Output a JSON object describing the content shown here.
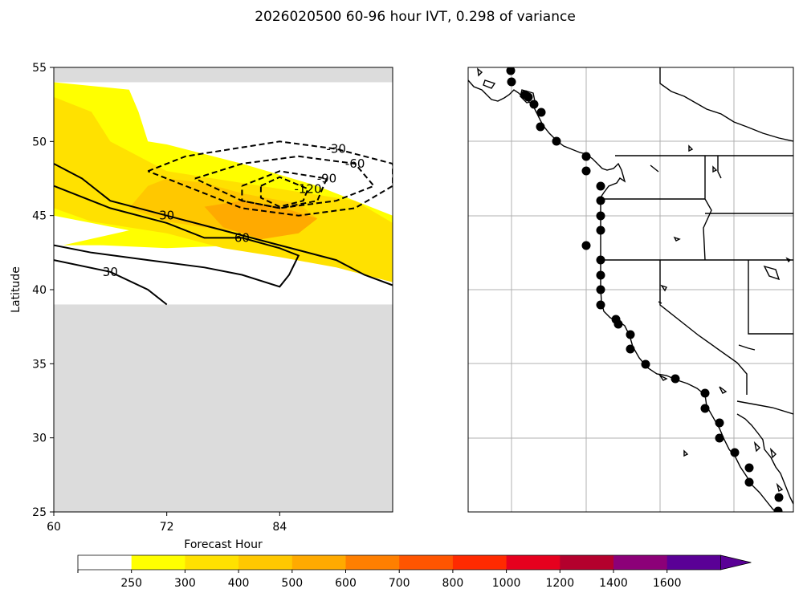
{
  "figure": {
    "title": "2026020500 60-96 hour IVT, 0.298 of variance"
  },
  "chart_data": [
    {
      "type": "contourf",
      "panel": "hovmoller",
      "xlabel": "Forecast Hour",
      "ylabel": "Latitude",
      "xlim": [
        60,
        96
      ],
      "ylim": [
        25,
        55
      ],
      "x_ticks": [
        60,
        72,
        84
      ],
      "y_ticks": [
        25,
        30,
        35,
        40,
        45,
        50,
        55
      ],
      "masked_lat_ranges": [
        [
          25,
          39
        ],
        [
          54,
          55
        ]
      ],
      "filled_levels": [
        {
          "range": [
            250,
            300
          ],
          "color": "#ffff00",
          "outline": [
            [
              60,
              54
            ],
            [
              68,
              53.5
            ],
            [
              69,
              52
            ],
            [
              70,
              50
            ],
            [
              72,
              49.8
            ],
            [
              80,
              48.5
            ],
            [
              88,
              47
            ],
            [
              96,
              45
            ],
            [
              96,
              41
            ],
            [
              88,
              42.5
            ],
            [
              80,
              43
            ],
            [
              72,
              42.8
            ],
            [
              65,
              43
            ],
            [
              61,
              43
            ],
            [
              68,
              44
            ],
            [
              60,
              45
            ]
          ]
        },
        {
          "range": [
            300,
            400
          ],
          "color": "#ffe100",
          "outline": [
            [
              60,
              53
            ],
            [
              64,
              52
            ],
            [
              66,
              50
            ],
            [
              72,
              48
            ],
            [
              80,
              47.2
            ],
            [
              92,
              46
            ],
            [
              96,
              44.5
            ],
            [
              96,
              40.5
            ],
            [
              90,
              41.5
            ],
            [
              84,
              42.2
            ],
            [
              78,
              42.8
            ],
            [
              72,
              43.8
            ],
            [
              64,
              44.6
            ],
            [
              60,
              45.5
            ]
          ]
        },
        {
          "range": [
            400,
            500
          ],
          "color": "#ffc800",
          "outline": [
            [
              72,
              47.5
            ],
            [
              76,
              47.2
            ],
            [
              80,
              46.5
            ],
            [
              86,
              45.8
            ],
            [
              88,
              44.8
            ],
            [
              84,
              43.8
            ],
            [
              78,
              44
            ],
            [
              72,
              44.6
            ],
            [
              68,
              45.5
            ],
            [
              70,
              47
            ]
          ]
        },
        {
          "range": [
            500,
            600
          ],
          "color": "#ffaa00",
          "outline": [
            [
              76,
              45.6
            ],
            [
              80,
              46
            ],
            [
              84,
              45.6
            ],
            [
              88,
              44.8
            ],
            [
              86,
              43.8
            ],
            [
              82,
              43.4
            ],
            [
              78,
              44.2
            ]
          ]
        }
      ],
      "contour_lines": [
        {
          "value": -30,
          "label": "-30",
          "style": "dashed",
          "points": [
            [
              70,
              48
            ],
            [
              74,
              49
            ],
            [
              84,
              50
            ],
            [
              90,
              49.5
            ],
            [
              96,
              48.5
            ],
            [
              96,
              47
            ],
            [
              92,
              45.5
            ],
            [
              86,
              45
            ],
            [
              80,
              45.5
            ],
            [
              74,
              47
            ],
            [
              70,
              48
            ]
          ]
        },
        {
          "value": -60,
          "label": "-60",
          "style": "dashed",
          "points": [
            [
              75,
              47.5
            ],
            [
              80,
              48.5
            ],
            [
              86,
              49
            ],
            [
              92,
              48.5
            ],
            [
              94,
              47
            ],
            [
              90,
              46
            ],
            [
              84,
              45.5
            ],
            [
              80,
              46
            ],
            [
              75,
              47.5
            ]
          ]
        },
        {
          "value": -90,
          "label": "-90",
          "style": "dashed",
          "points": [
            [
              80,
              47
            ],
            [
              84,
              48
            ],
            [
              89,
              47.5
            ],
            [
              88,
              46
            ],
            [
              84,
              45.5
            ],
            [
              80,
              46
            ],
            [
              80,
              47
            ]
          ]
        },
        {
          "value": -120,
          "label": "-120",
          "style": "dashed",
          "points": [
            [
              82,
              47
            ],
            [
              84,
              47.6
            ],
            [
              87,
              46.8
            ],
            [
              86.5,
              46
            ],
            [
              84,
              45.6
            ],
            [
              82,
              46.2
            ],
            [
              82,
              47
            ]
          ]
        },
        {
          "value": 30,
          "label": "30",
          "style": "solid",
          "points": [
            [
              60,
              48.5
            ],
            [
              63,
              47.5
            ],
            [
              66,
              46
            ],
            [
              72,
              45
            ],
            [
              78,
              44
            ],
            [
              84,
              43
            ],
            [
              90,
              42
            ],
            [
              93,
              41
            ],
            [
              96,
              40.3
            ]
          ]
        },
        {
          "value": 60,
          "label": "60",
          "style": "solid",
          "points": [
            [
              60,
              47
            ],
            [
              66,
              45.5
            ],
            [
              72,
              44.5
            ],
            [
              76,
              43.5
            ],
            [
              80,
              43.5
            ],
            [
              84,
              42.8
            ],
            [
              86,
              42.3
            ],
            [
              85,
              41
            ],
            [
              84,
              40.2
            ],
            [
              80,
              41
            ],
            [
              76,
              41.5
            ],
            [
              70,
              42
            ],
            [
              64,
              42.5
            ],
            [
              60,
              43
            ]
          ]
        },
        {
          "value": 30,
          "label": "30",
          "style": "solid",
          "points": [
            [
              60,
              42
            ],
            [
              66,
              41.2
            ],
            [
              70,
              40
            ],
            [
              72,
              39
            ]
          ]
        }
      ]
    },
    {
      "type": "map",
      "panel": "west-coast-map",
      "features": [
        "coastline",
        "state-borders",
        "country-borders",
        "gridlines"
      ],
      "point_count": 34
    }
  ],
  "colorbar": {
    "ticks": [
      "250",
      "300",
      "400",
      "500",
      "600",
      "700",
      "800",
      "1000",
      "1200",
      "1400",
      "1600"
    ],
    "colors": [
      "#ffffff",
      "#ffff00",
      "#ffe100",
      "#ffc800",
      "#ffaa00",
      "#ff7f00",
      "#ff5500",
      "#ff2a00",
      "#e6001e",
      "#b4002d",
      "#8c0078",
      "#5a0096"
    ]
  }
}
